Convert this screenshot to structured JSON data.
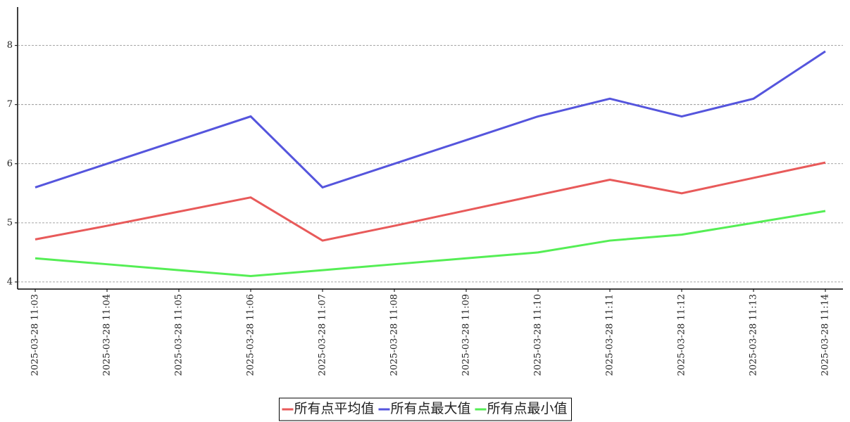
{
  "chart_data": {
    "type": "line",
    "categories": [
      "2025-03-28 11:03",
      "2025-03-28 11:04",
      "2025-03-28 11:05",
      "2025-03-28 11:06",
      "2025-03-28 11:07",
      "2025-03-28 11:08",
      "2025-03-28 11:09",
      "2025-03-28 11:10",
      "2025-03-28 11:11",
      "2025-03-28 11:12",
      "2025-03-28 11:13",
      "2025-03-28 11:14"
    ],
    "series": [
      {
        "name": "所有点平均值",
        "color": "#e85a5a",
        "values": [
          4.72,
          4.95,
          5.19,
          5.43,
          4.7,
          4.95,
          5.21,
          5.47,
          5.73,
          5.5,
          5.76,
          6.02
        ]
      },
      {
        "name": "所有点最大值",
        "color": "#5555dd",
        "values": [
          5.6,
          6.0,
          6.4,
          6.8,
          5.6,
          6.0,
          6.4,
          6.8,
          7.1,
          6.8,
          7.1,
          7.9
        ]
      },
      {
        "name": "所有点最小值",
        "color": "#55ee55",
        "values": [
          4.4,
          4.3,
          4.2,
          4.1,
          4.2,
          4.3,
          4.4,
          4.5,
          4.7,
          4.8,
          5.0,
          5.2
        ]
      }
    ],
    "ylim": [
      3.88,
      8.65
    ],
    "yticks": [
      4,
      5,
      6,
      7,
      8
    ],
    "grid": true,
    "legend": "bottom"
  }
}
